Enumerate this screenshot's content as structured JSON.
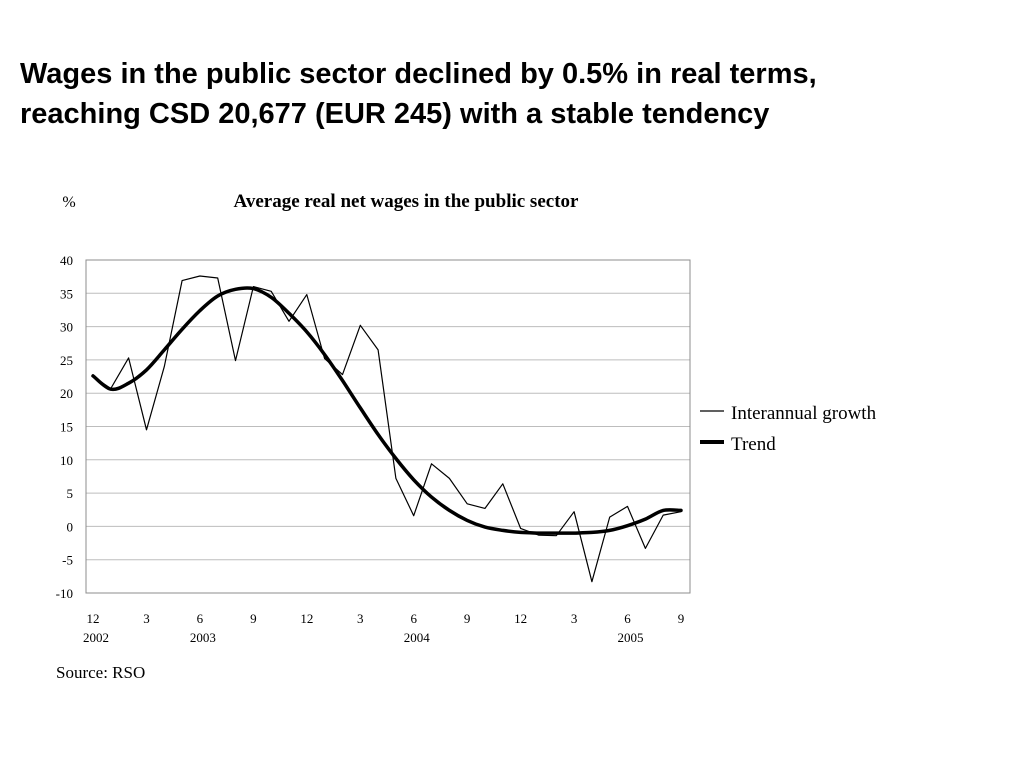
{
  "slide": {
    "title_line1": "Wages in the public sector declined by 0.5% in real terms,",
    "title_line2": "reaching CSD 20,677 (EUR 245) with a stable tendency",
    "source": "Source: RSO"
  },
  "chart_data": {
    "type": "line",
    "title": "Average real net wages in the public sector",
    "ylabel": "%",
    "xlabel": "",
    "ylim": [
      -10,
      40
    ],
    "yticks": [
      -10,
      -5,
      0,
      5,
      10,
      15,
      20,
      25,
      30,
      35,
      40
    ],
    "grid": true,
    "legend_position": "right",
    "x_tick_labels": [
      {
        "index": 0,
        "month": "12",
        "year": "2002"
      },
      {
        "index": 3,
        "month": "3",
        "year": ""
      },
      {
        "index": 6,
        "month": "6",
        "year": "2003"
      },
      {
        "index": 9,
        "month": "9",
        "year": ""
      },
      {
        "index": 12,
        "month": "12",
        "year": ""
      },
      {
        "index": 15,
        "month": "3",
        "year": ""
      },
      {
        "index": 18,
        "month": "6",
        "year": "2004"
      },
      {
        "index": 21,
        "month": "9",
        "year": ""
      },
      {
        "index": 24,
        "month": "12",
        "year": ""
      },
      {
        "index": 27,
        "month": "3",
        "year": ""
      },
      {
        "index": 30,
        "month": "6",
        "year": "2005"
      },
      {
        "index": 33,
        "month": "9",
        "year": ""
      }
    ],
    "series": [
      {
        "name": "Interannual growth",
        "style": "thin",
        "color": "#000000",
        "values": [
          22.5,
          20.7,
          25.3,
          14.5,
          24.0,
          36.9,
          37.6,
          37.3,
          24.9,
          36.0,
          35.3,
          30.8,
          34.8,
          25.2,
          22.8,
          30.2,
          26.5,
          7.2,
          1.6,
          9.4,
          7.2,
          3.4,
          2.7,
          6.4,
          -0.3,
          -1.3,
          -1.4,
          2.2,
          -8.3,
          1.4,
          3.0,
          -3.3,
          1.7,
          2.2
        ]
      },
      {
        "name": "Trend",
        "style": "thick",
        "color": "#000000",
        "values": [
          22.6,
          20.6,
          21.5,
          23.5,
          26.5,
          29.6,
          32.4,
          34.6,
          35.6,
          35.7,
          34.4,
          32.0,
          29.2,
          25.8,
          21.9,
          17.8,
          13.8,
          10.2,
          7.0,
          4.4,
          2.4,
          0.9,
          -0.1,
          -0.6,
          -0.9,
          -1.0,
          -1.0,
          -1.0,
          -0.9,
          -0.6,
          0.1,
          1.1,
          2.4,
          2.4
        ]
      }
    ]
  }
}
